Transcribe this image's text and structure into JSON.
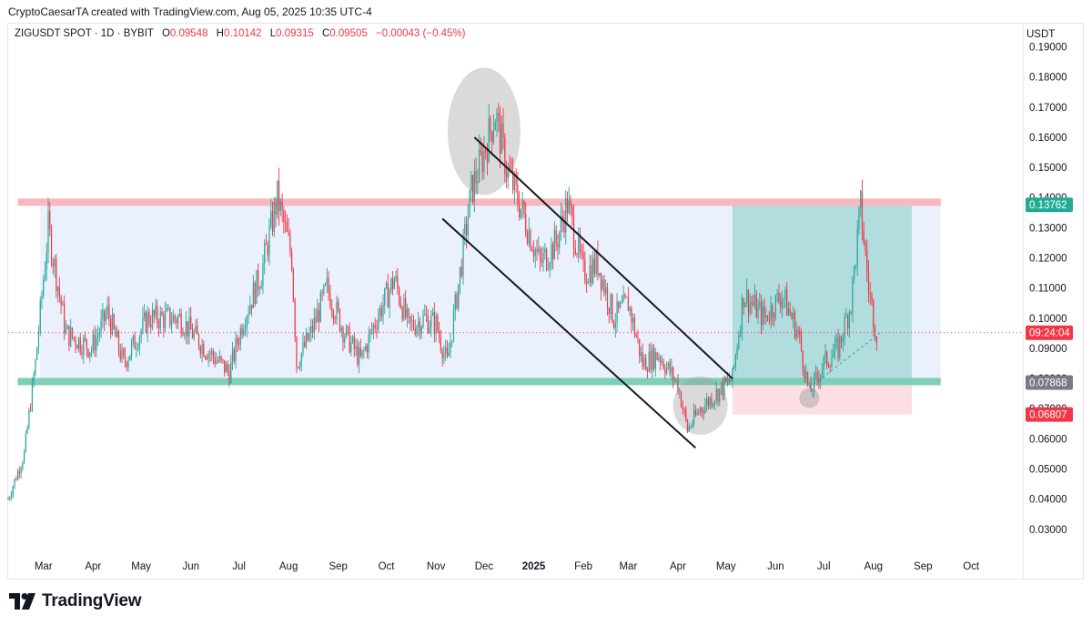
{
  "attribution": "CryptoCaesarTA created with TradingView.com, Aug 05, 2025 10:35 UTC-4",
  "legend": {
    "symbol": "ZIGUSDT SPOT · 1D · BYBIT",
    "open_label": "O",
    "open": "0.09548",
    "high_label": "H",
    "high": "0.10142",
    "low_label": "L",
    "low": "0.09315",
    "close_label": "C",
    "close": "0.09505",
    "change": "−0.00043 (−0.45%)"
  },
  "currency": "USDT",
  "brand": "TradingView",
  "icons": {
    "logo": "tradingview-logo-icon"
  },
  "colors": {
    "up": "#26a69a",
    "down": "#f23645",
    "resistance": "#f7b8bf",
    "support": "#7fcfb8",
    "range_fill": "#eaf1fd",
    "tp_zone": "#9fd6d3",
    "sl_zone": "#fcdfe3"
  },
  "chart_data": {
    "type": "candlestick",
    "title": "",
    "xlabel": "",
    "ylabel": "",
    "y_ticks": [
      "0.19000",
      "0.18000",
      "0.17000",
      "0.16000",
      "0.15000",
      "0.14000",
      "0.13000",
      "0.12000",
      "0.11000",
      "0.10000",
      "0.09000",
      "0.08000",
      "0.07000",
      "0.06000",
      "0.05000",
      "0.04000",
      "0.03000"
    ],
    "ylim": [
      0.0245,
      0.1974
    ],
    "x_ticks": [
      {
        "label": "Mar",
        "date": "2024-03-01"
      },
      {
        "label": "Apr",
        "date": "2024-04-01"
      },
      {
        "label": "May",
        "date": "2024-05-01"
      },
      {
        "label": "Jun",
        "date": "2024-06-01"
      },
      {
        "label": "Jul",
        "date": "2024-07-01"
      },
      {
        "label": "Aug",
        "date": "2024-08-01"
      },
      {
        "label": "Sep",
        "date": "2024-09-01"
      },
      {
        "label": "Oct",
        "date": "2024-10-01"
      },
      {
        "label": "Nov",
        "date": "2024-11-01"
      },
      {
        "label": "Dec",
        "date": "2024-12-01"
      },
      {
        "label": "2025",
        "date": "2025-01-01"
      },
      {
        "label": "Feb",
        "date": "2025-02-01"
      },
      {
        "label": "Mar",
        "date": "2025-03-01"
      },
      {
        "label": "Apr",
        "date": "2025-04-01"
      },
      {
        "label": "May",
        "date": "2025-05-01"
      },
      {
        "label": "Jun",
        "date": "2025-06-01"
      },
      {
        "label": "Jul",
        "date": "2025-07-01"
      },
      {
        "label": "Aug",
        "date": "2025-08-01"
      },
      {
        "label": "Sep",
        "date": "2025-09-01"
      },
      {
        "label": "Oct",
        "date": "2025-10-01"
      }
    ],
    "xlim": [
      "2024-02-08",
      "2025-10-31"
    ],
    "close_series": [
      [
        "2024-02-08",
        0.04
      ],
      [
        "2024-02-18",
        0.055
      ],
      [
        "2024-02-25",
        0.085
      ],
      [
        "2024-03-04",
        0.13
      ],
      [
        "2024-03-15",
        0.095
      ],
      [
        "2024-03-31",
        0.09
      ],
      [
        "2024-04-10",
        0.102
      ],
      [
        "2024-04-20",
        0.085
      ],
      [
        "2024-05-05",
        0.1
      ],
      [
        "2024-05-25",
        0.1
      ],
      [
        "2024-06-10",
        0.09
      ],
      [
        "2024-06-25",
        0.082
      ],
      [
        "2024-07-04",
        0.1
      ],
      [
        "2024-07-15",
        0.115
      ],
      [
        "2024-07-25",
        0.14
      ],
      [
        "2024-08-03",
        0.12
      ],
      [
        "2024-08-06",
        0.085
      ],
      [
        "2024-08-15",
        0.095
      ],
      [
        "2024-08-25",
        0.11
      ],
      [
        "2024-09-05",
        0.095
      ],
      [
        "2024-09-15",
        0.086
      ],
      [
        "2024-09-25",
        0.1
      ],
      [
        "2024-10-06",
        0.113
      ],
      [
        "2024-10-15",
        0.097
      ],
      [
        "2024-10-25",
        0.1
      ],
      [
        "2024-11-01",
        0.098
      ],
      [
        "2024-11-08",
        0.085
      ],
      [
        "2024-11-16",
        0.115
      ],
      [
        "2024-11-23",
        0.142
      ],
      [
        "2024-12-01",
        0.155
      ],
      [
        "2024-12-08",
        0.168
      ],
      [
        "2024-12-15",
        0.15
      ],
      [
        "2024-12-25",
        0.135
      ],
      [
        "2025-01-05",
        0.118
      ],
      [
        "2025-01-15",
        0.125
      ],
      [
        "2025-01-22",
        0.138
      ],
      [
        "2025-02-01",
        0.115
      ],
      [
        "2025-02-10",
        0.118
      ],
      [
        "2025-02-20",
        0.1
      ],
      [
        "2025-03-01",
        0.105
      ],
      [
        "2025-03-10",
        0.085
      ],
      [
        "2025-03-20",
        0.088
      ],
      [
        "2025-04-01",
        0.078
      ],
      [
        "2025-04-07",
        0.063
      ],
      [
        "2025-04-15",
        0.07
      ],
      [
        "2025-04-25",
        0.075
      ],
      [
        "2025-05-05",
        0.08
      ],
      [
        "2025-05-12",
        0.108
      ],
      [
        "2025-05-25",
        0.1
      ],
      [
        "2025-06-05",
        0.108
      ],
      [
        "2025-06-15",
        0.095
      ],
      [
        "2025-06-22",
        0.075
      ],
      [
        "2025-07-01",
        0.085
      ],
      [
        "2025-07-10",
        0.09
      ],
      [
        "2025-07-18",
        0.105
      ],
      [
        "2025-07-24",
        0.137
      ],
      [
        "2025-07-29",
        0.11
      ],
      [
        "2025-08-03",
        0.095
      ]
    ],
    "levels": {
      "resistance": 0.1385,
      "support": 0.079,
      "take_profit": 0.13762,
      "entry": 0.07868,
      "stop_loss": 0.06807,
      "last_price_label": "09:24:04",
      "last_price": 0.0952
    },
    "price_labels": [
      {
        "text": "0.13762",
        "value": 0.13762,
        "color": "#22ab94"
      },
      {
        "text": "09:24:04",
        "value": 0.0952,
        "color": "#f23645"
      },
      {
        "text": "0.07868",
        "value": 0.07868,
        "color": "#787b86"
      },
      {
        "text": "0.06807",
        "value": 0.06807,
        "color": "#f23645"
      }
    ],
    "grid": false,
    "legend_position": "top-left"
  }
}
